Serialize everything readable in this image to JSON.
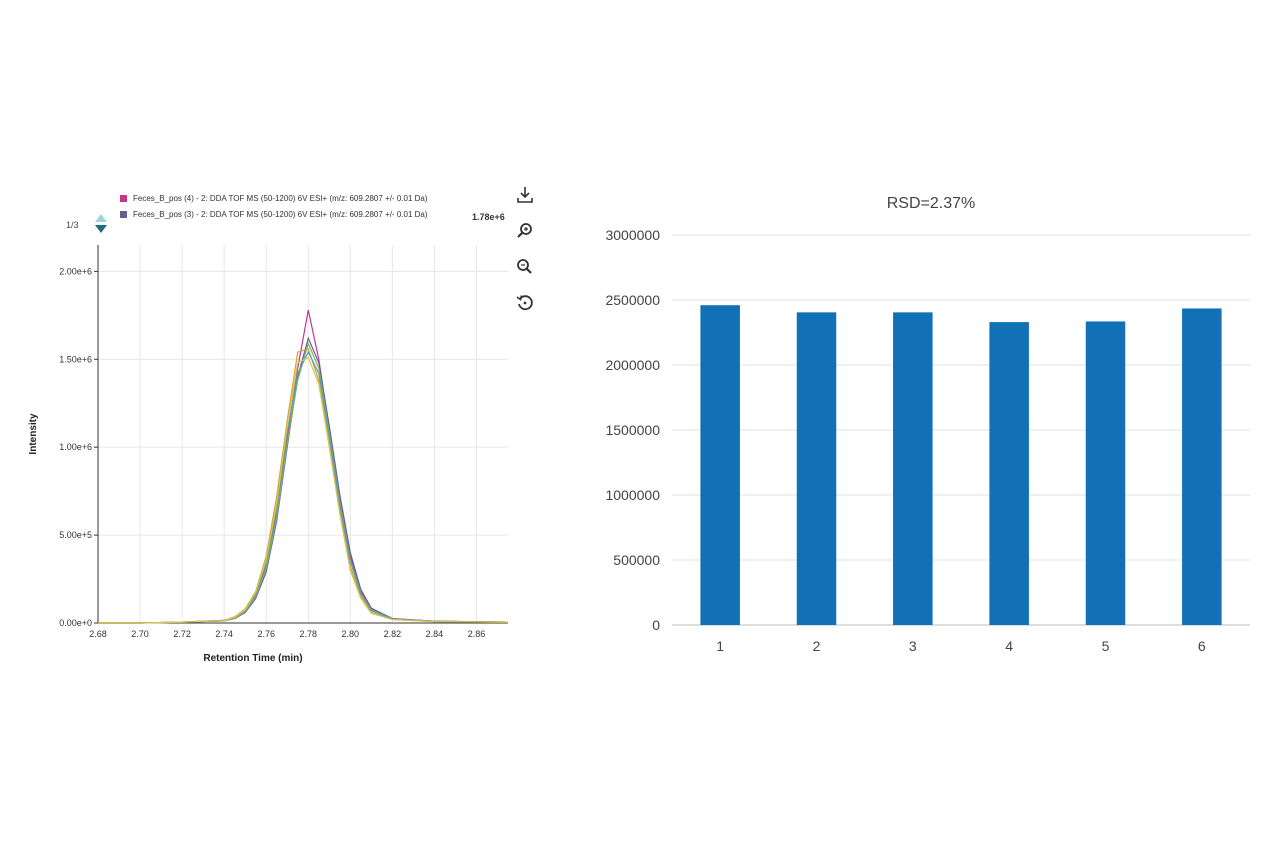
{
  "left_legend": {
    "page_indicator": "1/3",
    "entries": [
      {
        "label": "Feces_B_pos (4) - 2: DDA TOF MS (50-1200) 6V ESI+ (m/z: 609.2807 +/- 0.01 Da)",
        "color": "#c2378c"
      },
      {
        "label": "Feces_B_pos (3) - 2: DDA TOF MS (50-1200) 6V ESI+ (m/z: 609.2807 +/- 0.01 Da)",
        "color": "#6b5b95"
      }
    ],
    "peak_value": "1.78e+6"
  },
  "toolbar": {
    "icons": [
      "download-icon",
      "zoom-in-icon",
      "zoom-out-icon",
      "reset-icon"
    ]
  },
  "chart_data": [
    {
      "type": "line",
      "title": "",
      "xlabel": "Retention Time (min)",
      "ylabel": "Intensity",
      "xlim": [
        2.68,
        2.875
      ],
      "ylim": [
        0,
        2150000
      ],
      "x_ticks": [
        "2.68",
        "2.70",
        "2.72",
        "2.74",
        "2.76",
        "2.78",
        "2.80",
        "2.82",
        "2.84",
        "2.86"
      ],
      "x_tick_values": [
        2.68,
        2.7,
        2.72,
        2.74,
        2.76,
        2.78,
        2.8,
        2.82,
        2.84,
        2.86
      ],
      "y_ticks": [
        "0.00e+0",
        "5.00e+5",
        "1.00e+6",
        "1.50e+6",
        "2.00e+6"
      ],
      "y_tick_values": [
        0,
        500000,
        1000000,
        1500000,
        2000000
      ],
      "grid": true,
      "x": [
        2.68,
        2.7,
        2.72,
        2.74,
        2.745,
        2.75,
        2.755,
        2.76,
        2.765,
        2.77,
        2.775,
        2.78,
        2.785,
        2.79,
        2.795,
        2.8,
        2.805,
        2.81,
        2.82,
        2.84,
        2.875
      ],
      "series": [
        {
          "color": "#c2378c",
          "values": [
            0,
            0,
            5000,
            15000,
            30000,
            70000,
            160000,
            320000,
            620000,
            1050000,
            1450000,
            1780000,
            1500000,
            1100000,
            700000,
            380000,
            180000,
            80000,
            25000,
            10000,
            5000
          ]
        },
        {
          "color": "#6b5b95",
          "values": [
            0,
            0,
            5000,
            12000,
            25000,
            60000,
            140000,
            290000,
            580000,
            1000000,
            1400000,
            1620000,
            1480000,
            1120000,
            730000,
            400000,
            190000,
            85000,
            25000,
            10000,
            5000
          ]
        },
        {
          "color": "#e39a2c",
          "values": [
            0,
            0,
            5000,
            15000,
            35000,
            80000,
            180000,
            380000,
            720000,
            1150000,
            1540000,
            1560000,
            1380000,
            1020000,
            640000,
            320000,
            150000,
            60000,
            20000,
            8000,
            5000
          ]
        },
        {
          "color": "#7bb661",
          "values": [
            0,
            0,
            5000,
            12000,
            28000,
            65000,
            150000,
            310000,
            600000,
            1020000,
            1380000,
            1590000,
            1450000,
            1080000,
            690000,
            360000,
            170000,
            75000,
            22000,
            9000,
            5000
          ]
        },
        {
          "color": "#4fa3b6",
          "values": [
            0,
            0,
            5000,
            14000,
            30000,
            72000,
            165000,
            340000,
            650000,
            1080000,
            1420000,
            1540000,
            1420000,
            1060000,
            670000,
            350000,
            165000,
            70000,
            22000,
            9000,
            5000
          ]
        },
        {
          "color": "#d9c64a",
          "values": [
            0,
            0,
            5000,
            13000,
            32000,
            75000,
            175000,
            360000,
            680000,
            1120000,
            1480000,
            1510000,
            1360000,
            1000000,
            620000,
            300000,
            140000,
            55000,
            20000,
            8000,
            5000
          ]
        }
      ]
    },
    {
      "type": "bar",
      "title": "RSD=2.37%",
      "xlabel": "",
      "ylabel": "",
      "categories": [
        "1",
        "2",
        "3",
        "4",
        "5",
        "6"
      ],
      "values": [
        2460000,
        2405000,
        2405000,
        2330000,
        2335000,
        2435000
      ],
      "ylim": [
        0,
        3000000
      ],
      "y_ticks": [
        "0",
        "500000",
        "1000000",
        "1500000",
        "2000000",
        "2500000",
        "3000000"
      ],
      "y_tick_values": [
        0,
        500000,
        1000000,
        1500000,
        2000000,
        2500000,
        3000000
      ],
      "grid": true,
      "bar_color": "#1170b6"
    }
  ]
}
